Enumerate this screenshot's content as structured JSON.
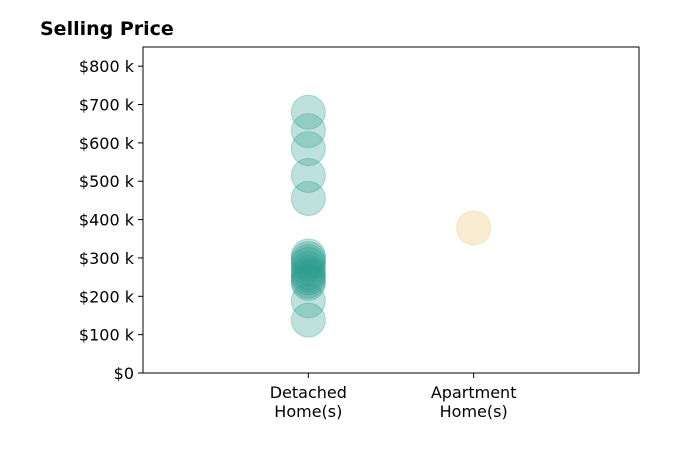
{
  "chart_data": {
    "type": "scatter",
    "title": "Selling Price",
    "xlabel": "",
    "ylabel": "",
    "categories": [
      "Detached\nHome(s)",
      "Apartment\nHome(s)"
    ],
    "y_tick_values": [
      0,
      100000,
      200000,
      300000,
      400000,
      500000,
      600000,
      700000,
      800000
    ],
    "y_tick_labels": [
      "$0",
      "$100 k",
      "$200 k",
      "$300 k",
      "$400 k",
      "$500 k",
      "$600 k",
      "$700 k",
      "$800 k"
    ],
    "ylim": [
      0,
      850000
    ],
    "x_range": [
      -1,
      2
    ],
    "grid": false,
    "legend": "none",
    "series": [
      {
        "category_index": 0,
        "color": "#2a9d8f",
        "opacity": 0.3,
        "values": [
          680000,
          632000,
          585000,
          515000,
          455000,
          305000,
          298000,
          290000,
          283000,
          272000,
          262000,
          255000,
          248000,
          240000,
          234000,
          188000,
          138000
        ]
      },
      {
        "category_index": 1,
        "color": "#e9c46a",
        "opacity": 0.3,
        "values": [
          378000
        ]
      }
    ]
  }
}
